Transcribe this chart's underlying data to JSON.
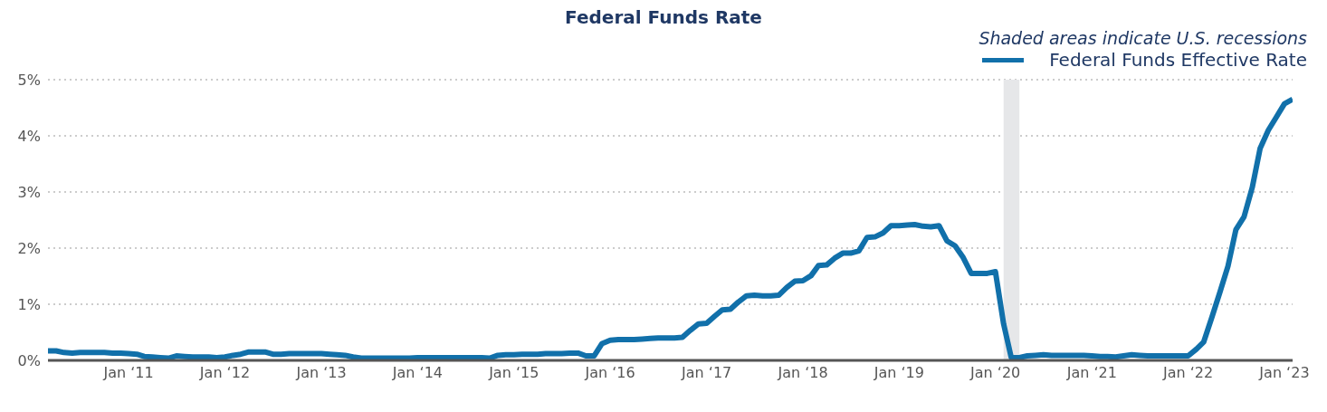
{
  "chart_data": {
    "type": "line",
    "title": "Federal Funds Rate",
    "annotations": [
      "Shaded areas indicate U.S. recessions"
    ],
    "x": [
      "2010-03",
      "2010-04",
      "2010-05",
      "2010-06",
      "2010-07",
      "2010-08",
      "2010-09",
      "2010-10",
      "2010-11",
      "2010-12",
      "2011-01",
      "2011-02",
      "2011-03",
      "2011-04",
      "2011-05",
      "2011-06",
      "2011-07",
      "2011-08",
      "2011-09",
      "2011-10",
      "2011-11",
      "2011-12",
      "2012-01",
      "2012-02",
      "2012-03",
      "2012-04",
      "2012-05",
      "2012-06",
      "2012-07",
      "2012-08",
      "2012-09",
      "2012-10",
      "2012-11",
      "2012-12",
      "2013-01",
      "2013-02",
      "2013-03",
      "2013-04",
      "2013-05",
      "2013-06",
      "2013-07",
      "2013-08",
      "2013-09",
      "2013-10",
      "2013-11",
      "2013-12",
      "2014-01",
      "2014-02",
      "2014-03",
      "2014-04",
      "2014-05",
      "2014-06",
      "2014-07",
      "2014-08",
      "2014-09",
      "2014-10",
      "2014-11",
      "2014-12",
      "2015-01",
      "2015-02",
      "2015-03",
      "2015-04",
      "2015-05",
      "2015-06",
      "2015-07",
      "2015-08",
      "2015-09",
      "2015-10",
      "2015-11",
      "2015-12",
      "2016-01",
      "2016-02",
      "2016-03",
      "2016-04",
      "2016-05",
      "2016-06",
      "2016-07",
      "2016-08",
      "2016-09",
      "2016-10",
      "2016-11",
      "2016-12",
      "2017-01",
      "2017-02",
      "2017-03",
      "2017-04",
      "2017-05",
      "2017-06",
      "2017-07",
      "2017-08",
      "2017-09",
      "2017-10",
      "2017-11",
      "2017-12",
      "2018-01",
      "2018-02",
      "2018-03",
      "2018-04",
      "2018-05",
      "2018-06",
      "2018-07",
      "2018-08",
      "2018-09",
      "2018-10",
      "2018-11",
      "2018-12",
      "2019-01",
      "2019-02",
      "2019-03",
      "2019-04",
      "2019-05",
      "2019-06",
      "2019-07",
      "2019-08",
      "2019-09",
      "2019-10",
      "2019-11",
      "2019-12",
      "2020-01",
      "2020-02",
      "2020-03",
      "2020-04",
      "2020-05",
      "2020-06",
      "2020-07",
      "2020-08",
      "2020-09",
      "2020-10",
      "2020-11",
      "2020-12",
      "2021-01",
      "2021-02",
      "2021-03",
      "2021-04",
      "2021-05",
      "2021-06",
      "2021-07",
      "2021-08",
      "2021-09",
      "2021-10",
      "2021-11",
      "2021-12",
      "2022-01",
      "2022-02",
      "2022-03",
      "2022-04",
      "2022-05",
      "2022-06",
      "2022-07",
      "2022-08",
      "2022-09",
      "2022-10",
      "2022-11",
      "2022-12",
      "2023-01",
      "2023-02"
    ],
    "series": [
      {
        "name": "Federal Funds Effective Rate",
        "color": "#1170aa",
        "values": [
          0.17,
          0.17,
          0.14,
          0.13,
          0.14,
          0.14,
          0.14,
          0.14,
          0.13,
          0.13,
          0.12,
          0.11,
          0.07,
          0.06,
          0.05,
          0.04,
          0.08,
          0.07,
          0.06,
          0.06,
          0.06,
          0.05,
          0.06,
          0.09,
          0.11,
          0.15,
          0.15,
          0.15,
          0.11,
          0.11,
          0.12,
          0.12,
          0.12,
          0.12,
          0.12,
          0.11,
          0.1,
          0.09,
          0.06,
          0.04,
          0.04,
          0.04,
          0.04,
          0.04,
          0.04,
          0.04,
          0.05,
          0.05,
          0.05,
          0.05,
          0.05,
          0.05,
          0.05,
          0.05,
          0.05,
          0.04,
          0.09,
          0.1,
          0.1,
          0.11,
          0.11,
          0.11,
          0.12,
          0.12,
          0.12,
          0.13,
          0.13,
          0.08,
          0.08,
          0.3,
          0.36,
          0.37,
          0.37,
          0.37,
          0.38,
          0.39,
          0.4,
          0.4,
          0.4,
          0.41,
          0.54,
          0.65,
          0.66,
          0.79,
          0.9,
          0.91,
          1.04,
          1.15,
          1.16,
          1.15,
          1.15,
          1.16,
          1.3,
          1.41,
          1.42,
          1.51,
          1.69,
          1.7,
          1.82,
          1.91,
          1.91,
          1.95,
          2.19,
          2.2,
          2.27,
          2.4,
          2.4,
          2.41,
          2.42,
          2.39,
          2.38,
          2.4,
          2.13,
          2.04,
          1.83,
          1.55,
          1.55,
          1.55,
          1.58,
          0.65,
          0.05,
          0.05,
          0.08,
          0.09,
          0.1,
          0.09,
          0.09,
          0.09,
          0.09,
          0.09,
          0.08,
          0.07,
          0.07,
          0.06,
          0.08,
          0.1,
          0.09,
          0.08,
          0.08,
          0.08,
          0.08,
          0.08,
          0.08,
          0.2,
          0.33,
          0.77,
          1.21,
          1.68,
          2.33,
          2.56,
          3.08,
          3.78,
          4.1,
          4.33,
          4.57,
          4.65
        ]
      }
    ],
    "xlim": [
      "2010-03",
      "2023-02"
    ],
    "xticks": [
      {
        "value": "2011-01",
        "label": "Jan ‘11"
      },
      {
        "value": "2012-01",
        "label": "Jan ‘12"
      },
      {
        "value": "2013-01",
        "label": "Jan ‘13"
      },
      {
        "value": "2014-01",
        "label": "Jan ‘14"
      },
      {
        "value": "2015-01",
        "label": "Jan ‘15"
      },
      {
        "value": "2016-01",
        "label": "Jan ‘16"
      },
      {
        "value": "2017-01",
        "label": "Jan ‘17"
      },
      {
        "value": "2018-01",
        "label": "Jan ‘18"
      },
      {
        "value": "2019-01",
        "label": "Jan ‘19"
      },
      {
        "value": "2020-01",
        "label": "Jan ‘20"
      },
      {
        "value": "2021-01",
        "label": "Jan ‘21"
      },
      {
        "value": "2022-01",
        "label": "Jan ‘22"
      },
      {
        "value": "2023-01",
        "label": "Jan ‘23"
      }
    ],
    "ylim": [
      0,
      5
    ],
    "yticks": [
      {
        "value": 0,
        "label": "0%"
      },
      {
        "value": 1,
        "label": "1%"
      },
      {
        "value": 2,
        "label": "2%"
      },
      {
        "value": 3,
        "label": "3%"
      },
      {
        "value": 4,
        "label": "4%"
      },
      {
        "value": 5,
        "label": "5%"
      }
    ],
    "bands": [
      {
        "axis": "x",
        "from": "2020-02",
        "to": "2020-04",
        "color": "#e6e7e9"
      }
    ],
    "grid": "y",
    "legend": "top right",
    "marker": "none",
    "line_style": "solid"
  }
}
